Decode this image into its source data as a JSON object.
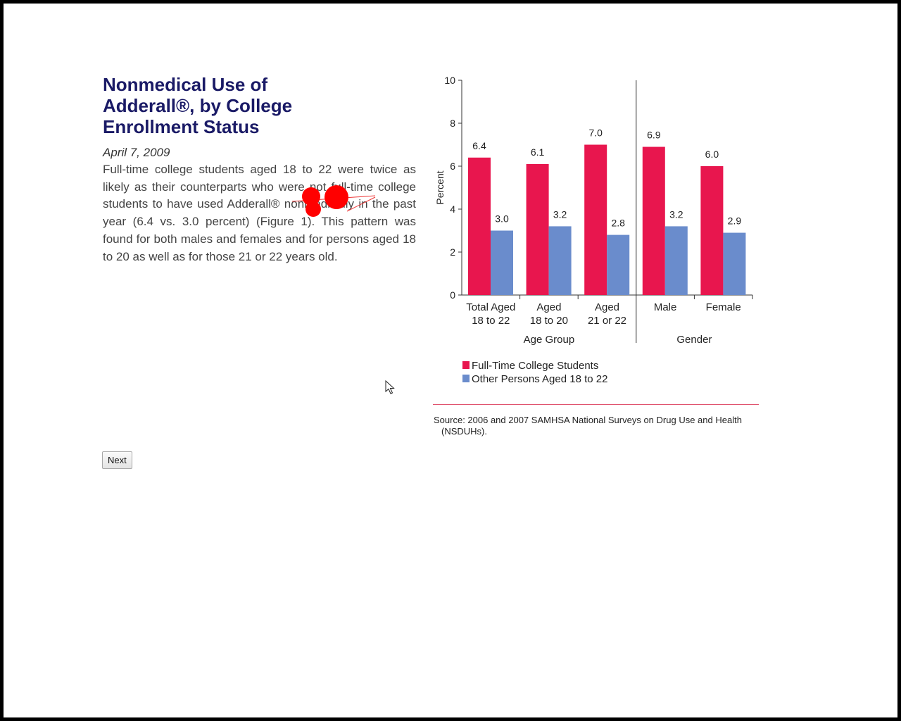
{
  "article": {
    "title": "Nonmedical Use of Adderall®, by College Enrollment Status",
    "date": "April 7, 2009",
    "body": "Full-time college students aged 18 to 22 were twice as likely as their counterparts who were not full-time college students to have used Adderall® nonmedically in the past year (6.4 vs. 3.0 percent) (Figure 1). This pattern was found for both males and females and for persons aged 18 to 20 as well as for those 21 or 22 years old."
  },
  "chart_data": {
    "type": "bar",
    "ylabel": "Percent",
    "ylim": [
      0,
      10
    ],
    "yticks": [
      0,
      2,
      4,
      6,
      8,
      10
    ],
    "categories": [
      [
        "Total Aged",
        "18 to 22"
      ],
      [
        "Aged",
        "18 to 20"
      ],
      [
        "Aged",
        "21 or 22"
      ],
      [
        "Male"
      ],
      [
        "Female"
      ]
    ],
    "groups": [
      {
        "label": "Age Group",
        "categories": [
          0,
          1,
          2
        ]
      },
      {
        "label": "Gender",
        "categories": [
          3,
          4
        ]
      }
    ],
    "series": [
      {
        "name": "Full-Time College Students",
        "color": "#e8164e",
        "values": [
          6.4,
          6.1,
          7.0,
          6.9,
          6.0
        ]
      },
      {
        "name": "Other Persons Aged 18 to 22",
        "color": "#6a8ccc",
        "values": [
          3.0,
          3.2,
          2.8,
          3.2,
          2.9
        ]
      }
    ],
    "legend_position": "bottom-left"
  },
  "source": "Source: 2006 and 2007 SAMHSA National Surveys on Drug Use and Health (NSDUHs).",
  "buttons": {
    "next": "Next"
  },
  "icons": {
    "cursor": "arrow-pointer-icon",
    "annotation": "red-dot-markup"
  }
}
